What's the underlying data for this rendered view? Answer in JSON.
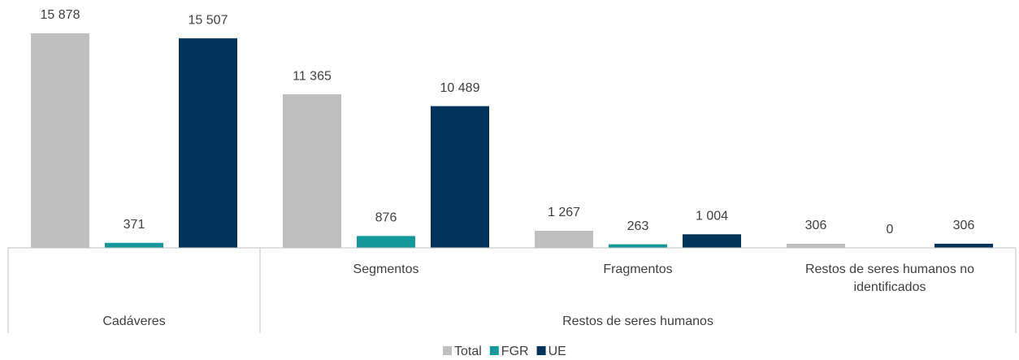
{
  "chart_data": {
    "type": "bar",
    "categories": [
      null,
      "Segmentos",
      "Fragmentos",
      "Restos de seres humanos no identificados"
    ],
    "category_groups": [
      "Cadáveres",
      "Restos de seres humanos",
      "Restos de seres humanos",
      "Restos de seres humanos"
    ],
    "series": [
      {
        "name": "Total",
        "color": "#bfbfbf",
        "values": [
          15878,
          11365,
          1267,
          306
        ],
        "value_labels": [
          "15 878",
          "11 365",
          "1 267",
          "306"
        ]
      },
      {
        "name": "FGR",
        "color": "#13999a",
        "values": [
          371,
          876,
          263,
          0
        ],
        "value_labels": [
          "371",
          "876",
          "263",
          "0"
        ]
      },
      {
        "name": "UE",
        "color": "#00335a",
        "values": [
          15507,
          10489,
          1004,
          306
        ],
        "value_labels": [
          "15 507",
          "10 489",
          "1 004",
          "306"
        ]
      }
    ],
    "legend": "bottom"
  }
}
